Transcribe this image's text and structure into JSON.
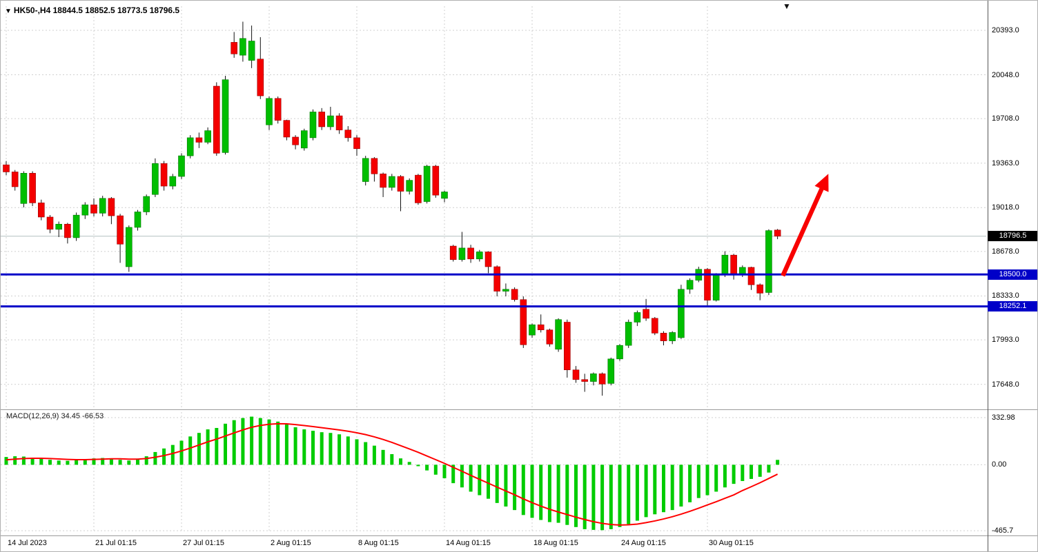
{
  "header": {
    "marker_icon": "▼",
    "title": "HK50-,H4  18844.5 18852.5 18773.5 18796.5",
    "top_right_marker": "▼"
  },
  "chart_data": [
    {
      "type": "candlestick",
      "panel": "price",
      "symbol": "HK50-",
      "timeframe": "H4",
      "open": 18844.5,
      "high": 18852.5,
      "low": 18773.5,
      "close": 18796.5,
      "y_ticks": [
        "20393.0",
        "20048.0",
        "19708.0",
        "19363.0",
        "19018.0",
        "18678.0",
        "18333.0",
        "17993.0",
        "17648.0"
      ],
      "ylim": [
        17470,
        20580
      ],
      "x_labels": [
        "14 Jul 2023",
        "21 Jul 01:15",
        "27 Jul 01:15",
        "2 Aug 01:15",
        "8 Aug 01:15",
        "14 Aug 01:15",
        "18 Aug 01:15",
        "24 Aug 01:15",
        "30 Aug 01:15"
      ],
      "x_label_indices": [
        0,
        10,
        20,
        30,
        40,
        50,
        60,
        70,
        80
      ],
      "grid": "dashed",
      "candles": [
        [
          19350,
          19380,
          19270,
          19295
        ],
        [
          19295,
          19310,
          19150,
          19180
        ],
        [
          19050,
          19300,
          19020,
          19285
        ],
        [
          19285,
          19300,
          19030,
          19055
        ],
        [
          19055,
          19080,
          18920,
          18945
        ],
        [
          18945,
          18960,
          18820,
          18850
        ],
        [
          18850,
          18910,
          18790,
          18890
        ],
        [
          18890,
          18900,
          18740,
          18785
        ],
        [
          18785,
          18980,
          18760,
          18960
        ],
        [
          18960,
          19060,
          18930,
          19040
        ],
        [
          19040,
          19090,
          18950,
          18975
        ],
        [
          18975,
          19110,
          18950,
          19090
        ],
        [
          19090,
          19100,
          18890,
          18955
        ],
        [
          18955,
          18970,
          18590,
          18735
        ],
        [
          18560,
          18880,
          18520,
          18865
        ],
        [
          18865,
          19000,
          18840,
          18985
        ],
        [
          18985,
          19120,
          18960,
          19105
        ],
        [
          19120,
          19400,
          19100,
          19360
        ],
        [
          19360,
          19380,
          19150,
          19185
        ],
        [
          19185,
          19280,
          19160,
          19260
        ],
        [
          19260,
          19440,
          19240,
          19420
        ],
        [
          19420,
          19580,
          19400,
          19560
        ],
        [
          19560,
          19600,
          19480,
          19525
        ],
        [
          19525,
          19640,
          19510,
          19615
        ],
        [
          19960,
          19990,
          19420,
          19440
        ],
        [
          19445,
          20040,
          19430,
          20010
        ],
        [
          20300,
          20380,
          20180,
          20210
        ],
        [
          20200,
          20460,
          20150,
          20330
        ],
        [
          20160,
          20430,
          20100,
          20310
        ],
        [
          20170,
          20340,
          19860,
          19885
        ],
        [
          19660,
          19880,
          19620,
          19865
        ],
        [
          19865,
          19880,
          19670,
          19695
        ],
        [
          19695,
          19700,
          19540,
          19565
        ],
        [
          19565,
          19580,
          19470,
          19505
        ],
        [
          19480,
          19630,
          19460,
          19615
        ],
        [
          19560,
          19780,
          19540,
          19760
        ],
        [
          19760,
          19790,
          19620,
          19645
        ],
        [
          19645,
          19800,
          19620,
          19730
        ],
        [
          19730,
          19750,
          19590,
          19620
        ],
        [
          19620,
          19650,
          19530,
          19560
        ],
        [
          19560,
          19580,
          19420,
          19475
        ],
        [
          19220,
          19420,
          19190,
          19400
        ],
        [
          19400,
          19410,
          19220,
          19280
        ],
        [
          19280,
          19290,
          19100,
          19175
        ],
        [
          19175,
          19280,
          19150,
          19260
        ],
        [
          19260,
          19270,
          18990,
          19145
        ],
        [
          19145,
          19245,
          19120,
          19230
        ],
        [
          19270,
          19280,
          19040,
          19055
        ],
        [
          19065,
          19350,
          19050,
          19340
        ],
        [
          19340,
          19350,
          19095,
          19115
        ],
        [
          19090,
          19150,
          19060,
          19140
        ],
        [
          18720,
          18730,
          18600,
          18615
        ],
        [
          18615,
          18830,
          18600,
          18705
        ],
        [
          18705,
          18730,
          18590,
          18620
        ],
        [
          18620,
          18690,
          18600,
          18675
        ],
        [
          18675,
          18680,
          18510,
          18560
        ],
        [
          18560,
          18570,
          18330,
          18370
        ],
        [
          18370,
          18430,
          18330,
          18385
        ],
        [
          18385,
          18400,
          18290,
          18305
        ],
        [
          18305,
          18330,
          17930,
          17955
        ],
        [
          18030,
          18120,
          18010,
          18110
        ],
        [
          18110,
          18190,
          18050,
          18070
        ],
        [
          18070,
          18080,
          17940,
          17960
        ],
        [
          17920,
          18160,
          17900,
          18150
        ],
        [
          18130,
          18150,
          17700,
          17760
        ],
        [
          17760,
          17790,
          17660,
          17685
        ],
        [
          17685,
          17730,
          17590,
          17670
        ],
        [
          17670,
          17740,
          17640,
          17730
        ],
        [
          17730,
          17740,
          17560,
          17650
        ],
        [
          17655,
          17855,
          17640,
          17845
        ],
        [
          17845,
          17960,
          17830,
          17950
        ],
        [
          17950,
          18150,
          17930,
          18130
        ],
        [
          18130,
          18220,
          18100,
          18205
        ],
        [
          18230,
          18310,
          18140,
          18160
        ],
        [
          18160,
          18170,
          18030,
          18045
        ],
        [
          18045,
          18060,
          17950,
          17985
        ],
        [
          17985,
          18060,
          17960,
          18050
        ],
        [
          18010,
          18420,
          18000,
          18385
        ],
        [
          18385,
          18470,
          18350,
          18455
        ],
        [
          18455,
          18560,
          18440,
          18540
        ],
        [
          18540,
          18550,
          18260,
          18300
        ],
        [
          18300,
          18510,
          18290,
          18495
        ],
        [
          18495,
          18680,
          18480,
          18650
        ],
        [
          18650,
          18660,
          18460,
          18500
        ],
        [
          18500,
          18570,
          18480,
          18555
        ],
        [
          18555,
          18560,
          18380,
          18420
        ],
        [
          18420,
          18430,
          18300,
          18355
        ],
        [
          18360,
          18850,
          18340,
          18840
        ],
        [
          18844.5,
          18852.5,
          18773.5,
          18796.5
        ]
      ],
      "support_lines": [
        {
          "price": 18500.0,
          "label": "18500.0"
        },
        {
          "price": 18252.1,
          "label": "18252.1"
        }
      ],
      "current_price": 18796.5,
      "current_price_label": "18796.5",
      "arrow": {
        "from_bar": 88.6,
        "from_price": 18490,
        "to_bar": 93.8,
        "to_price": 19280
      },
      "colors": {
        "up": "#00be00",
        "down": "#f40000",
        "wick": "#111111",
        "support": "#0000c8",
        "arrow": "#f80000",
        "grid": "#cfcfcf"
      }
    },
    {
      "type": "bar",
      "panel": "indicator",
      "label": "MACD(12,26,9) 34.45 -66.53",
      "main_value": 34.45,
      "signal_value": -66.53,
      "y_ticks": [
        "332.98",
        "0.00",
        "-465.7"
      ],
      "y_tick_values": [
        332.98,
        0,
        -465.7
      ],
      "ylim": [
        -480,
        372
      ],
      "histogram": [
        55,
        60,
        58,
        50,
        42,
        35,
        30,
        28,
        32,
        40,
        45,
        48,
        45,
        35,
        30,
        40,
        60,
        90,
        115,
        140,
        170,
        200,
        225,
        250,
        260,
        290,
        315,
        330,
        340,
        330,
        320,
        305,
        285,
        265,
        250,
        240,
        230,
        225,
        215,
        200,
        180,
        160,
        135,
        105,
        75,
        45,
        20,
        -10,
        -40,
        -70,
        -95,
        -130,
        -160,
        -190,
        -215,
        -240,
        -270,
        -295,
        -320,
        -355,
        -375,
        -390,
        -405,
        -410,
        -425,
        -440,
        -455,
        -460,
        -462,
        -455,
        -440,
        -420,
        -395,
        -370,
        -350,
        -335,
        -320,
        -295,
        -265,
        -235,
        -215,
        -190,
        -160,
        -135,
        -115,
        -100,
        -85,
        -55,
        34.45
      ],
      "signal": [
        35,
        40,
        44,
        46,
        46,
        44,
        41,
        38,
        36,
        36,
        38,
        40,
        42,
        42,
        40,
        40,
        44,
        53,
        65,
        80,
        98,
        118,
        140,
        162,
        181,
        203,
        225,
        246,
        265,
        278,
        286,
        290,
        289,
        284,
        277,
        270,
        262,
        254,
        246,
        237,
        226,
        213,
        197,
        179,
        158,
        135,
        112,
        88,
        62,
        36,
        10,
        -18,
        -46,
        -75,
        -103,
        -130,
        -158,
        -185,
        -212,
        -241,
        -268,
        -292,
        -315,
        -334,
        -352,
        -370,
        -387,
        -402,
        -414,
        -422,
        -426,
        -424,
        -419,
        -409,
        -397,
        -383,
        -367,
        -349,
        -329,
        -307,
        -284,
        -261,
        -237,
        -213,
        -182,
        -155,
        -127,
        -97,
        -66.53
      ],
      "colors": {
        "histogram": "#00cc00",
        "signal": "#ff0000"
      }
    }
  ]
}
